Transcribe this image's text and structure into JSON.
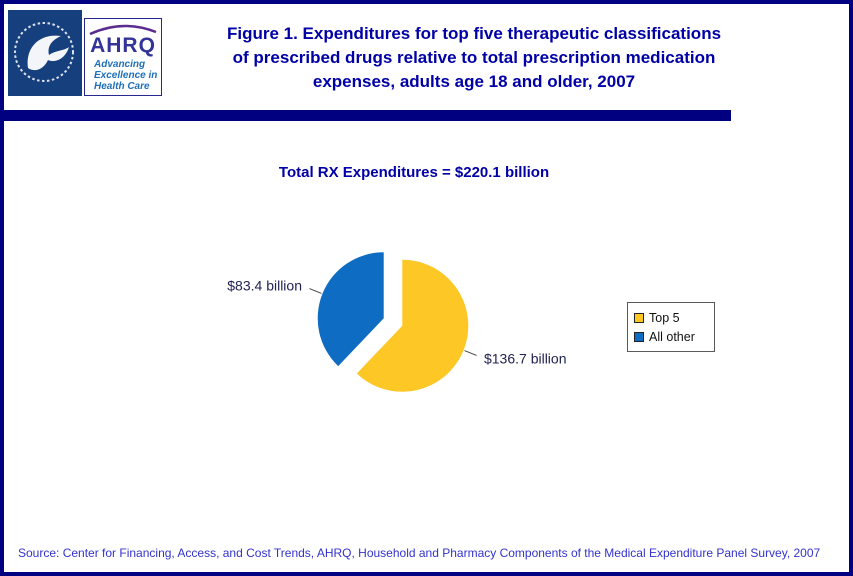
{
  "theme": {
    "navy": "#000080",
    "title_color": "#0000A6",
    "source_color": "#3333CC"
  },
  "header": {
    "title_lines": [
      "Figure 1. Expenditures for top five therapeutic classifications",
      "of prescribed drugs relative to total prescription medication",
      "expenses, adults age 18 and older, 2007"
    ],
    "ahrq": {
      "name": "AHRQ",
      "tagline_lines": [
        "Advancing",
        "Excellence in",
        "Health Care"
      ]
    }
  },
  "chart_data": {
    "type": "pie",
    "title": "Total RX Expenditures = $220.1 billion",
    "total": 220.1,
    "units": "billion USD",
    "legend_position": "right",
    "exploded": true,
    "slices": [
      {
        "label": "Top 5",
        "value": 136.7,
        "display_label": "$136.7 billion",
        "color": "#FDC726"
      },
      {
        "label": "All other",
        "value": 83.4,
        "display_label": "$83.4 billion",
        "color": "#0E6CC2"
      }
    ]
  },
  "footer": {
    "source": "Source: Center for Financing, Access, and Cost Trends, AHRQ, Household and Pharmacy Components of the Medical Expenditure Panel Survey, 2007"
  }
}
